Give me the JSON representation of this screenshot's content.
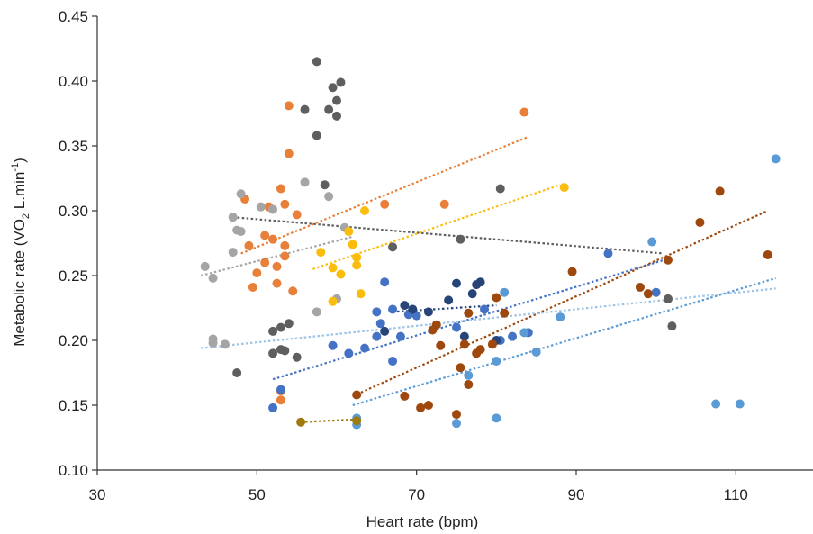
{
  "chart_data": {
    "type": "scatter",
    "title": "",
    "xlabel": "Heart rate (bpm)",
    "ylabel": {
      "main": "Metabolic rate (VO",
      "sub": "2",
      "rest": " L.min",
      "sup": "-1",
      "close": ")"
    },
    "xlim": [
      30,
      120
    ],
    "ylim": [
      0.1,
      0.45
    ],
    "xticks": [
      "30",
      "50",
      "70",
      "90",
      "110"
    ],
    "yticks": [
      "0.10",
      "0.15",
      "0.20",
      "0.25",
      "0.30",
      "0.35",
      "0.40",
      "0.45"
    ],
    "grid": false,
    "legend": "none",
    "series": [
      {
        "color": "#5f5f5f",
        "points": [
          [
            57.5,
            0.415
          ],
          [
            60.5,
            0.399
          ],
          [
            59.5,
            0.395
          ],
          [
            60,
            0.385
          ],
          [
            56,
            0.378
          ],
          [
            59,
            0.378
          ],
          [
            60,
            0.373
          ],
          [
            57.5,
            0.358
          ],
          [
            58.5,
            0.32
          ],
          [
            47.5,
            0.175
          ],
          [
            52,
            0.207
          ],
          [
            53,
            0.21
          ],
          [
            54,
            0.213
          ],
          [
            53.5,
            0.192
          ],
          [
            52,
            0.19
          ],
          [
            53,
            0.193
          ],
          [
            55,
            0.187
          ],
          [
            67,
            0.272
          ],
          [
            75.5,
            0.278
          ],
          [
            80.5,
            0.317
          ],
          [
            101.5,
            0.232
          ],
          [
            102,
            0.211
          ]
        ],
        "trend": [
          [
            47,
            0.295
          ],
          [
            101,
            0.267
          ]
        ]
      },
      {
        "color": "#e8803a",
        "points": [
          [
            54,
            0.381
          ],
          [
            83.5,
            0.376
          ],
          [
            54,
            0.344
          ],
          [
            53,
            0.317
          ],
          [
            53.5,
            0.305
          ],
          [
            52,
            0.278
          ],
          [
            51,
            0.281
          ],
          [
            51,
            0.26
          ],
          [
            50,
            0.252
          ],
          [
            49.5,
            0.241
          ],
          [
            52.5,
            0.244
          ],
          [
            52.5,
            0.257
          ],
          [
            53.5,
            0.265
          ],
          [
            55,
            0.297
          ],
          [
            54.5,
            0.238
          ],
          [
            49,
            0.273
          ],
          [
            48.5,
            0.309
          ],
          [
            51.5,
            0.303
          ],
          [
            53,
            0.161
          ],
          [
            53,
            0.154
          ],
          [
            66,
            0.305
          ],
          [
            73.5,
            0.305
          ],
          [
            53.5,
            0.273
          ]
        ],
        "trend": [
          [
            48,
            0.267
          ],
          [
            84,
            0.357
          ]
        ]
      },
      {
        "color": "#a5a5a5",
        "points": [
          [
            43.5,
            0.257
          ],
          [
            44.5,
            0.248
          ],
          [
            44.5,
            0.198
          ],
          [
            44.5,
            0.201
          ],
          [
            46,
            0.197
          ],
          [
            47,
            0.295
          ],
          [
            47.5,
            0.285
          ],
          [
            48,
            0.313
          ],
          [
            47,
            0.268
          ],
          [
            48,
            0.284
          ],
          [
            50.5,
            0.303
          ],
          [
            52,
            0.301
          ],
          [
            56,
            0.322
          ],
          [
            59,
            0.311
          ],
          [
            61,
            0.287
          ],
          [
            57.5,
            0.222
          ],
          [
            60,
            0.232
          ]
        ],
        "trend": [
          [
            43,
            0.25
          ],
          [
            62,
            0.28
          ]
        ]
      },
      {
        "color": "#fbbd0d",
        "points": [
          [
            63.5,
            0.3
          ],
          [
            61.5,
            0.284
          ],
          [
            62,
            0.274
          ],
          [
            62.5,
            0.264
          ],
          [
            59.5,
            0.256
          ],
          [
            62.5,
            0.258
          ],
          [
            60.5,
            0.251
          ],
          [
            58,
            0.268
          ],
          [
            59.5,
            0.23
          ],
          [
            63,
            0.236
          ],
          [
            88.5,
            0.318
          ]
        ],
        "trend": [
          [
            57,
            0.255
          ],
          [
            88,
            0.32
          ]
        ]
      },
      {
        "color": "#4472c4",
        "points": [
          [
            52,
            0.148
          ],
          [
            53,
            0.162
          ],
          [
            59.5,
            0.196
          ],
          [
            61.5,
            0.19
          ],
          [
            63.5,
            0.194
          ],
          [
            65,
            0.203
          ],
          [
            65,
            0.222
          ],
          [
            65.5,
            0.213
          ],
          [
            67,
            0.184
          ],
          [
            67,
            0.224
          ],
          [
            68,
            0.203
          ],
          [
            66,
            0.245
          ],
          [
            69,
            0.22
          ],
          [
            70,
            0.219
          ],
          [
            75,
            0.21
          ],
          [
            78.5,
            0.224
          ],
          [
            80.5,
            0.2
          ],
          [
            82,
            0.203
          ],
          [
            84,
            0.206
          ],
          [
            94,
            0.267
          ],
          [
            100,
            0.237
          ]
        ],
        "trend": [
          [
            52,
            0.17
          ],
          [
            101,
            0.262
          ]
        ]
      },
      {
        "color": "#264478",
        "points": [
          [
            66,
            0.207
          ],
          [
            68.5,
            0.227
          ],
          [
            69.5,
            0.224
          ],
          [
            71.5,
            0.222
          ],
          [
            74,
            0.231
          ],
          [
            75,
            0.244
          ],
          [
            77.5,
            0.243
          ],
          [
            78,
            0.245
          ],
          [
            77,
            0.236
          ],
          [
            76,
            0.203
          ],
          [
            80,
            0.2
          ]
        ],
        "trend": [
          [
            67,
            0.222
          ],
          [
            80,
            0.227
          ]
        ]
      },
      {
        "color": "#9e480e",
        "points": [
          [
            62.5,
            0.158
          ],
          [
            68.5,
            0.157
          ],
          [
            70.5,
            0.148
          ],
          [
            71.5,
            0.15
          ],
          [
            72,
            0.208
          ],
          [
            72.5,
            0.212
          ],
          [
            73,
            0.196
          ],
          [
            75,
            0.143
          ],
          [
            75.5,
            0.179
          ],
          [
            76.5,
            0.166
          ],
          [
            76,
            0.197
          ],
          [
            77.5,
            0.19
          ],
          [
            78,
            0.193
          ],
          [
            79.5,
            0.197
          ],
          [
            80,
            0.233
          ],
          [
            81,
            0.221
          ],
          [
            89.5,
            0.253
          ],
          [
            98,
            0.241
          ],
          [
            99,
            0.236
          ],
          [
            101.5,
            0.262
          ],
          [
            105.5,
            0.291
          ],
          [
            108,
            0.315
          ],
          [
            114,
            0.266
          ],
          [
            76.5,
            0.221
          ]
        ],
        "trend": [
          [
            62,
            0.157
          ],
          [
            114,
            0.3
          ]
        ]
      },
      {
        "color": "#5b9bd5",
        "points": [
          [
            62.5,
            0.135
          ],
          [
            62.5,
            0.14
          ],
          [
            75,
            0.136
          ],
          [
            76.5,
            0.173
          ],
          [
            80,
            0.184
          ],
          [
            80,
            0.14
          ],
          [
            81,
            0.237
          ],
          [
            83.5,
            0.206
          ],
          [
            85,
            0.191
          ],
          [
            88,
            0.218
          ],
          [
            99.5,
            0.276
          ],
          [
            107.5,
            0.151
          ],
          [
            110.5,
            0.151
          ],
          [
            115,
            0.34
          ]
        ],
        "trend": [
          [
            62,
            0.15
          ],
          [
            115,
            0.248
          ]
        ]
      },
      {
        "color": "#9e7a0f",
        "points": [
          [
            55.5,
            0.137
          ],
          [
            62.5,
            0.138
          ]
        ],
        "trend": [
          [
            55.5,
            0.137
          ],
          [
            62.5,
            0.139
          ]
        ]
      },
      {
        "color": "#9dc3e6",
        "points": [],
        "trend": [
          [
            43,
            0.194
          ],
          [
            115,
            0.24
          ]
        ]
      }
    ]
  }
}
